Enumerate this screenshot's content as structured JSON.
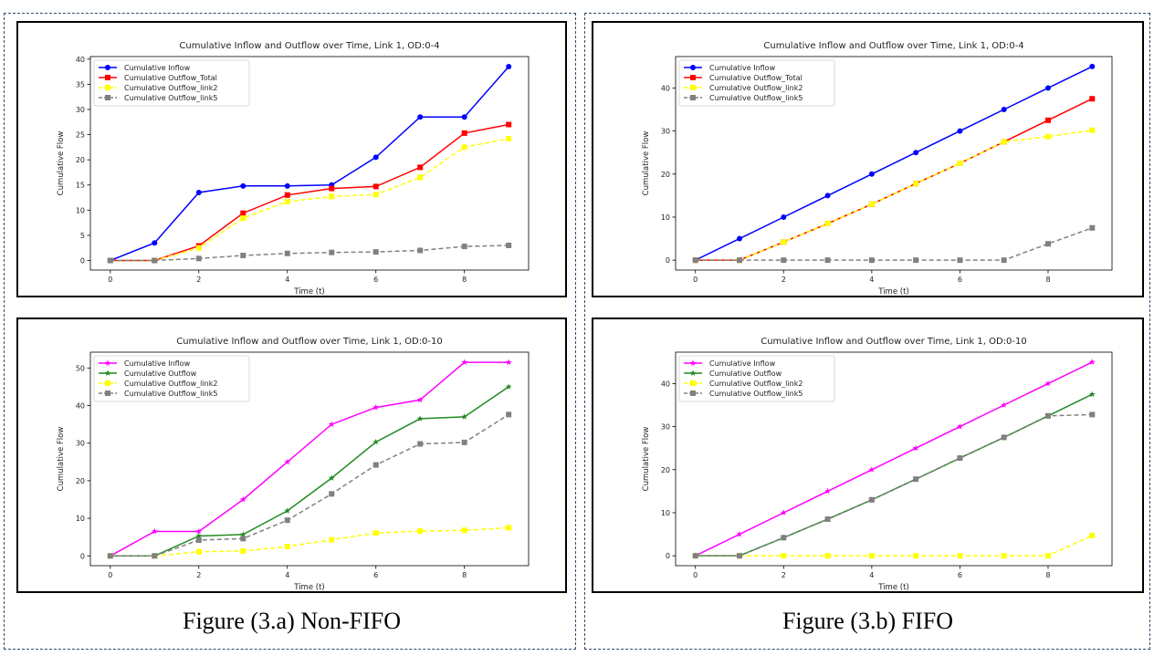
{
  "captions": {
    "left": "Figure (3.a) Non-FIFO",
    "right": "Figure (3.b) FIFO"
  },
  "chart_data": [
    {
      "type": "line",
      "title": "Cumulative Inflow and Outflow over Time, Link 1, OD:0-4",
      "xlabel": "Time (t)",
      "ylabel": "Cumulative Flow",
      "xlim": [
        -0.45,
        9.45
      ],
      "ylim": [
        -1.9,
        40.5
      ],
      "xticks": [
        0,
        2,
        4,
        6,
        8
      ],
      "yticks": [
        0,
        5,
        10,
        15,
        20,
        25,
        30,
        35,
        40
      ],
      "legend": "top-left",
      "grid": false,
      "x": [
        0,
        1,
        2,
        3,
        4,
        5,
        6,
        7,
        8,
        9
      ],
      "series": [
        {
          "name": "Cumulative Inflow",
          "color": "#0000ff",
          "marker": "circle",
          "dash": false,
          "values": [
            0,
            3.5,
            13.5,
            14.8,
            14.8,
            15,
            20.5,
            28.5,
            28.5,
            38.5
          ]
        },
        {
          "name": "Cumulative Outflow_Total",
          "color": "#ff0000",
          "marker": "square",
          "dash": false,
          "values": [
            0,
            0,
            2.9,
            9.4,
            13.0,
            14.3,
            14.7,
            18.5,
            25.3,
            27.0
          ]
        },
        {
          "name": "Cumulative Outflow_link2",
          "color": "#ffff00",
          "marker": "square",
          "dash": true,
          "values": [
            0,
            0,
            2.5,
            8.4,
            11.7,
            12.7,
            13.1,
            16.5,
            22.5,
            24.2
          ]
        },
        {
          "name": "Cumulative Outflow_link5",
          "color": "#808080",
          "marker": "square",
          "dash": true,
          "values": [
            0,
            0,
            0.4,
            1.0,
            1.4,
            1.6,
            1.7,
            2.0,
            2.8,
            3.0
          ]
        }
      ]
    },
    {
      "type": "line",
      "title": "Cumulative Inflow and Outflow over Time, Link 1, OD:0-4",
      "xlabel": "Time (t)",
      "ylabel": "Cumulative Flow",
      "xlim": [
        -0.45,
        9.45
      ],
      "ylim": [
        -2.3,
        47.3
      ],
      "xticks": [
        0,
        2,
        4,
        6,
        8
      ],
      "yticks": [
        0,
        10,
        20,
        30,
        40
      ],
      "legend": "top-left",
      "grid": false,
      "x": [
        0,
        1,
        2,
        3,
        4,
        5,
        6,
        7,
        8,
        9
      ],
      "series": [
        {
          "name": "Cumulative Inflow",
          "color": "#0000ff",
          "marker": "circle",
          "dash": false,
          "values": [
            0,
            5,
            10,
            15,
            20,
            25,
            30,
            35,
            40,
            45
          ]
        },
        {
          "name": "Cumulative Outflow_Total",
          "color": "#ff0000",
          "marker": "square",
          "dash": false,
          "values": [
            0,
            0,
            4.2,
            8.5,
            13.0,
            17.8,
            22.5,
            27.5,
            32.5,
            37.5
          ]
        },
        {
          "name": "Cumulative Outflow_link2",
          "color": "#ffff00",
          "marker": "square",
          "dash": true,
          "values": [
            0,
            0,
            4.2,
            8.5,
            13.0,
            17.8,
            22.5,
            27.5,
            28.7,
            30.2
          ]
        },
        {
          "name": "Cumulative Outflow_link5",
          "color": "#808080",
          "marker": "square",
          "dash": true,
          "values": [
            0,
            0,
            0,
            0,
            0,
            0,
            0,
            0,
            3.8,
            7.5
          ]
        }
      ]
    },
    {
      "type": "line",
      "title": "Cumulative Inflow and Outflow over Time, Link 1, OD:0-10",
      "xlabel": "Time (t)",
      "ylabel": "Cumulative Flow",
      "xlim": [
        -0.45,
        9.45
      ],
      "ylim": [
        -2.6,
        54.2
      ],
      "xticks": [
        0,
        2,
        4,
        6,
        8
      ],
      "yticks": [
        0,
        10,
        20,
        30,
        40,
        50
      ],
      "legend": "top-left",
      "grid": false,
      "x": [
        0,
        1,
        2,
        3,
        4,
        5,
        6,
        7,
        8,
        9
      ],
      "series": [
        {
          "name": "Cumulative Inflow",
          "color": "#ff00ff",
          "marker": "star",
          "dash": false,
          "values": [
            0,
            6.5,
            6.5,
            15,
            25,
            35,
            39.5,
            41.5,
            51.5,
            51.5
          ]
        },
        {
          "name": "Cumulative Outflow",
          "color": "#228b22",
          "marker": "star",
          "dash": false,
          "values": [
            0,
            0,
            5.3,
            5.7,
            12,
            20.7,
            30.3,
            36.5,
            37,
            45
          ]
        },
        {
          "name": "Cumulative Outflow_link2",
          "color": "#ffff00",
          "marker": "square",
          "dash": true,
          "values": [
            0,
            0,
            1.1,
            1.3,
            2.5,
            4.3,
            6.1,
            6.6,
            6.8,
            7.5
          ]
        },
        {
          "name": "Cumulative Outflow_link5",
          "color": "#808080",
          "marker": "square",
          "dash": true,
          "values": [
            0,
            0,
            4.2,
            4.6,
            9.5,
            16.5,
            24.2,
            29.8,
            30.2,
            37.6
          ]
        }
      ]
    },
    {
      "type": "line",
      "title": "Cumulative Inflow and Outflow over Time, Link 1, OD:0-10",
      "xlabel": "Time (t)",
      "ylabel": "Cumulative Flow",
      "xlim": [
        -0.45,
        9.45
      ],
      "ylim": [
        -2.3,
        47.3
      ],
      "xticks": [
        0,
        2,
        4,
        6,
        8
      ],
      "yticks": [
        0,
        10,
        20,
        30,
        40
      ],
      "legend": "top-left",
      "grid": false,
      "x": [
        0,
        1,
        2,
        3,
        4,
        5,
        6,
        7,
        8,
        9
      ],
      "series": [
        {
          "name": "Cumulative Inflow",
          "color": "#ff00ff",
          "marker": "star",
          "dash": false,
          "values": [
            0,
            5,
            10,
            15,
            20,
            25,
            30,
            35,
            40,
            45
          ]
        },
        {
          "name": "Cumulative Outflow",
          "color": "#228b22",
          "marker": "star",
          "dash": false,
          "values": [
            0,
            0,
            4.2,
            8.5,
            13.0,
            17.8,
            22.7,
            27.5,
            32.5,
            37.5
          ]
        },
        {
          "name": "Cumulative Outflow_link2",
          "color": "#ffff00",
          "marker": "square",
          "dash": true,
          "values": [
            0,
            0,
            0,
            0,
            0,
            0,
            0,
            0,
            0,
            4.7
          ]
        },
        {
          "name": "Cumulative Outflow_link5",
          "color": "#808080",
          "marker": "square",
          "dash": true,
          "values": [
            0,
            0,
            4.2,
            8.5,
            13.0,
            17.8,
            22.7,
            27.5,
            32.5,
            32.8
          ]
        }
      ]
    }
  ]
}
